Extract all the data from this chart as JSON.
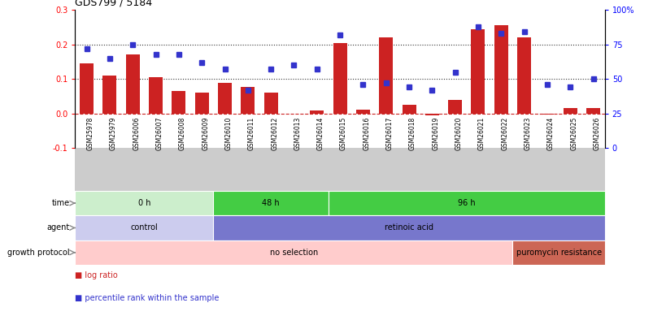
{
  "title": "GDS799 / 5184",
  "samples": [
    "GSM25978",
    "GSM25979",
    "GSM26006",
    "GSM26007",
    "GSM26008",
    "GSM26009",
    "GSM26010",
    "GSM26011",
    "GSM26012",
    "GSM26013",
    "GSM26014",
    "GSM26015",
    "GSM26016",
    "GSM26017",
    "GSM26018",
    "GSM26019",
    "GSM26020",
    "GSM26021",
    "GSM26022",
    "GSM26023",
    "GSM26024",
    "GSM26025",
    "GSM26026"
  ],
  "log_ratio": [
    0.145,
    0.11,
    0.17,
    0.105,
    0.065,
    0.06,
    0.088,
    0.078,
    0.06,
    0.0,
    0.008,
    0.205,
    0.01,
    0.22,
    0.025,
    -0.005,
    0.04,
    0.245,
    0.255,
    0.22,
    -0.002,
    0.015,
    0.015
  ],
  "percentile_rank": [
    72,
    65,
    75,
    68,
    68,
    62,
    57,
    42,
    57,
    60,
    57,
    82,
    46,
    47,
    44,
    42,
    55,
    88,
    83,
    84,
    46,
    44,
    50
  ],
  "bar_color": "#cc2222",
  "dot_color": "#3333cc",
  "ylim_left": [
    -0.1,
    0.3
  ],
  "ylim_right": [
    0,
    100
  ],
  "yticks_left": [
    -0.1,
    0.0,
    0.1,
    0.2,
    0.3
  ],
  "yticks_right": [
    0,
    25,
    50,
    75,
    100
  ],
  "hlines": [
    0.1,
    0.2
  ],
  "zero_line_color": "#cc2222",
  "dotted_line_color": "#333333",
  "bg_color": "#ffffff",
  "time_groups": [
    {
      "label": "0 h",
      "start": 0,
      "end": 5,
      "color": "#cceecc"
    },
    {
      "label": "48 h",
      "start": 6,
      "end": 10,
      "color": "#44cc44"
    },
    {
      "label": "96 h",
      "start": 11,
      "end": 22,
      "color": "#44cc44"
    }
  ],
  "agent_groups": [
    {
      "label": "control",
      "start": 0,
      "end": 5,
      "color": "#ccccee"
    },
    {
      "label": "retinoic acid",
      "start": 6,
      "end": 22,
      "color": "#7777cc"
    }
  ],
  "growth_groups": [
    {
      "label": "no selection",
      "start": 0,
      "end": 18,
      "color": "#ffcccc"
    },
    {
      "label": "puromycin resistance",
      "start": 19,
      "end": 22,
      "color": "#cc6655"
    }
  ],
  "sample_row_color": "#cccccc",
  "legend_items": [
    {
      "label": "log ratio",
      "color": "#cc2222"
    },
    {
      "label": "percentile rank within the sample",
      "color": "#3333cc"
    }
  ]
}
